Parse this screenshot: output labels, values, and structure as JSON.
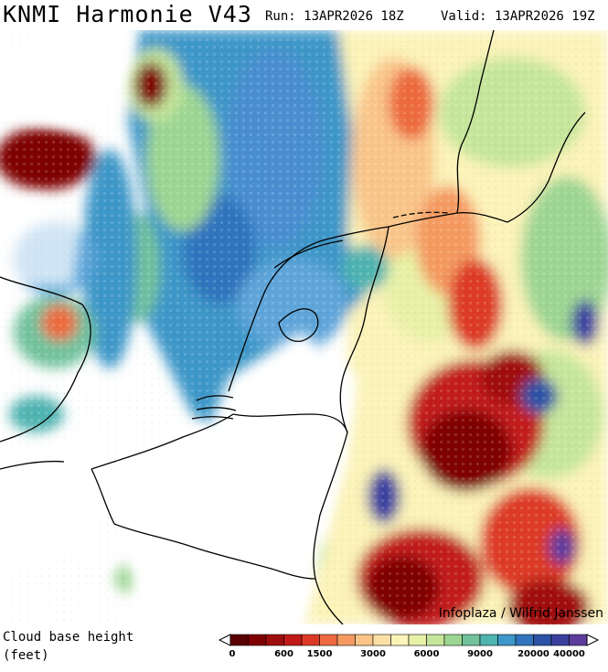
{
  "header": {
    "title": "KNMI Harmonie V43",
    "run": "Run: 13APR2026 18Z",
    "valid": "Valid: 13APR2026 19Z"
  },
  "map": {
    "credit": "Infoplaza / Wilfrid Janssen"
  },
  "legend": {
    "title_line1": "Cloud base height",
    "title_line2": "(feet)",
    "tick_labels": [
      "0",
      "600",
      "1500",
      "3000",
      "6000",
      "9000",
      "20000",
      "40000"
    ],
    "colors": [
      "#5a0000",
      "#7f0000",
      "#a00d0d",
      "#c21a1a",
      "#dd3a26",
      "#ec6a3e",
      "#f49a60",
      "#f9c589",
      "#fbe0a5",
      "#fbf3b8",
      "#e7f1a6",
      "#c5e69a",
      "#9dd593",
      "#72c29d",
      "#4fb3b0",
      "#3d97c8",
      "#2f74bd",
      "#2b52a5",
      "#3b3fa0",
      "#5d3c9c"
    ],
    "tick_positions": [
      0,
      3,
      5,
      8,
      11,
      14,
      17,
      19
    ]
  }
}
